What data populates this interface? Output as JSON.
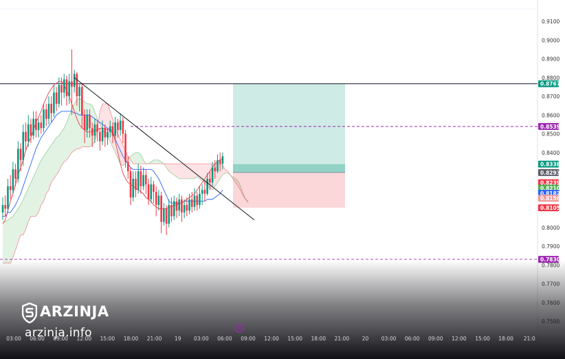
{
  "watermark": {
    "brand": "ARZINJA",
    "url": "arzinja.info"
  },
  "chart_data": {
    "type": "candlestick",
    "y_range": [
      0.7455,
      0.916
    ],
    "y_ticks": [
      "0.9100",
      "0.9000",
      "0.8900",
      "0.8800",
      "0.8700",
      "0.8600",
      "0.8500",
      "0.8400",
      "0.8300",
      "0.8200",
      "0.8100",
      "0.8000",
      "0.7900",
      "0.7800",
      "0.7700",
      "0.7600",
      "0.7500"
    ],
    "x_ticks": [
      "03:00",
      "06:00",
      "09:00",
      "12:00",
      "15:00",
      "18:00",
      "21:00",
      "19",
      "03:00",
      "06:00",
      "09:00",
      "12:00",
      "15:00",
      "18:00",
      "21:00",
      "20",
      "03:00",
      "06:00",
      "09:00",
      "12:00",
      "15:00",
      "18:00",
      "21:0"
    ],
    "price_tags": [
      {
        "label": "0.8767",
        "value": 0.8767,
        "color": "#089981"
      },
      {
        "label": "0.8539",
        "value": 0.8539,
        "color": "#9c27b0"
      },
      {
        "label": "0.8338",
        "value": 0.8338,
        "color": "#089981"
      },
      {
        "label": "0.8293",
        "value": 0.8293,
        "color": "#5d606b"
      },
      {
        "label": "0.8239",
        "value": 0.8239,
        "color": "#f23645"
      },
      {
        "label": "0.8210",
        "value": 0.821,
        "color": "#4caf50"
      },
      {
        "label": "0.8182",
        "value": 0.8182,
        "color": "#2962ff"
      },
      {
        "label": "0.8156",
        "value": 0.8156,
        "color": "#ef9a9a"
      },
      {
        "label": "0.8105",
        "value": 0.8105,
        "color": "#f23645"
      },
      {
        "label": "0.7830",
        "value": 0.783,
        "color": "#9c27b0"
      }
    ],
    "horizontal_lines": [
      {
        "value": 0.8767,
        "style": "solid",
        "color": "#131722"
      },
      {
        "value": 0.8539,
        "style": "dashed",
        "color": "#9c27b0"
      },
      {
        "value": 0.783,
        "style": "dashed",
        "color": "#9c27b0"
      }
    ],
    "position": {
      "entry": 0.8293,
      "target": 0.8767,
      "stop": 0.8105
    },
    "candles": [
      [
        0.808,
        0.812,
        0.804,
        0.816
      ],
      [
        0.812,
        0.81,
        0.806,
        0.817
      ],
      [
        0.81,
        0.822,
        0.808,
        0.826
      ],
      [
        0.822,
        0.82,
        0.815,
        0.828
      ],
      [
        0.82,
        0.831,
        0.818,
        0.835
      ],
      [
        0.831,
        0.826,
        0.822,
        0.834
      ],
      [
        0.826,
        0.842,
        0.824,
        0.846
      ],
      [
        0.842,
        0.836,
        0.83,
        0.845
      ],
      [
        0.836,
        0.851,
        0.833,
        0.855
      ],
      [
        0.851,
        0.846,
        0.841,
        0.856
      ],
      [
        0.846,
        0.855,
        0.843,
        0.86
      ],
      [
        0.855,
        0.849,
        0.845,
        0.858
      ],
      [
        0.849,
        0.858,
        0.847,
        0.862
      ],
      [
        0.858,
        0.852,
        0.848,
        0.862
      ],
      [
        0.852,
        0.856,
        0.848,
        0.858
      ],
      [
        0.856,
        0.853,
        0.85,
        0.86
      ],
      [
        0.853,
        0.863,
        0.851,
        0.866
      ],
      [
        0.863,
        0.858,
        0.854,
        0.866
      ],
      [
        0.858,
        0.866,
        0.855,
        0.87
      ],
      [
        0.866,
        0.861,
        0.856,
        0.87
      ],
      [
        0.861,
        0.872,
        0.859,
        0.876
      ],
      [
        0.872,
        0.866,
        0.862,
        0.875
      ],
      [
        0.866,
        0.876,
        0.864,
        0.88
      ],
      [
        0.876,
        0.872,
        0.865,
        0.88
      ],
      [
        0.872,
        0.879,
        0.869,
        0.882
      ],
      [
        0.879,
        0.87,
        0.865,
        0.881
      ],
      [
        0.87,
        0.878,
        0.866,
        0.882
      ],
      [
        0.878,
        0.875,
        0.86,
        0.895
      ],
      [
        0.875,
        0.882,
        0.872,
        0.884
      ],
      [
        0.882,
        0.87,
        0.865,
        0.883
      ],
      [
        0.87,
        0.875,
        0.862,
        0.877
      ],
      [
        0.875,
        0.86,
        0.853,
        0.877
      ],
      [
        0.86,
        0.852,
        0.845,
        0.863
      ],
      [
        0.852,
        0.86,
        0.848,
        0.863
      ],
      [
        0.86,
        0.853,
        0.848,
        0.863
      ],
      [
        0.853,
        0.849,
        0.843,
        0.856
      ],
      [
        0.849,
        0.855,
        0.845,
        0.858
      ],
      [
        0.855,
        0.851,
        0.846,
        0.857
      ],
      [
        0.851,
        0.846,
        0.841,
        0.853
      ],
      [
        0.846,
        0.853,
        0.844,
        0.857
      ],
      [
        0.853,
        0.848,
        0.843,
        0.855
      ],
      [
        0.848,
        0.851,
        0.844,
        0.853
      ],
      [
        0.851,
        0.854,
        0.848,
        0.857
      ],
      [
        0.854,
        0.849,
        0.845,
        0.856
      ],
      [
        0.849,
        0.856,
        0.847,
        0.859
      ],
      [
        0.856,
        0.852,
        0.848,
        0.858
      ],
      [
        0.852,
        0.857,
        0.849,
        0.861
      ],
      [
        0.857,
        0.85,
        0.845,
        0.859
      ],
      [
        0.85,
        0.835,
        0.832,
        0.852
      ],
      [
        0.835,
        0.83,
        0.826,
        0.838
      ],
      [
        0.83,
        0.816,
        0.812,
        0.832
      ],
      [
        0.816,
        0.826,
        0.814,
        0.83
      ],
      [
        0.826,
        0.82,
        0.816,
        0.83
      ],
      [
        0.82,
        0.83,
        0.818,
        0.834
      ],
      [
        0.83,
        0.822,
        0.818,
        0.833
      ],
      [
        0.822,
        0.828,
        0.82,
        0.832
      ],
      [
        0.828,
        0.823,
        0.818,
        0.831
      ],
      [
        0.823,
        0.815,
        0.812,
        0.826
      ],
      [
        0.815,
        0.823,
        0.813,
        0.827
      ],
      [
        0.823,
        0.819,
        0.813,
        0.825
      ],
      [
        0.819,
        0.812,
        0.806,
        0.822
      ],
      [
        0.812,
        0.817,
        0.809,
        0.82
      ],
      [
        0.817,
        0.803,
        0.797,
        0.819
      ],
      [
        0.803,
        0.81,
        0.801,
        0.813
      ],
      [
        0.81,
        0.802,
        0.796,
        0.812
      ],
      [
        0.802,
        0.812,
        0.8,
        0.815
      ],
      [
        0.812,
        0.806,
        0.803,
        0.816
      ],
      [
        0.806,
        0.814,
        0.804,
        0.817
      ],
      [
        0.814,
        0.809,
        0.805,
        0.816
      ],
      [
        0.809,
        0.815,
        0.806,
        0.818
      ],
      [
        0.815,
        0.808,
        0.803,
        0.817
      ],
      [
        0.808,
        0.812,
        0.805,
        0.815
      ],
      [
        0.812,
        0.809,
        0.806,
        0.816
      ],
      [
        0.809,
        0.815,
        0.807,
        0.818
      ],
      [
        0.815,
        0.811,
        0.808,
        0.819
      ],
      [
        0.811,
        0.817,
        0.809,
        0.821
      ],
      [
        0.817,
        0.812,
        0.809,
        0.819
      ],
      [
        0.812,
        0.818,
        0.81,
        0.822
      ],
      [
        0.818,
        0.82,
        0.812,
        0.823
      ],
      [
        0.82,
        0.818,
        0.814,
        0.825
      ],
      [
        0.818,
        0.826,
        0.817,
        0.829
      ],
      [
        0.826,
        0.824,
        0.82,
        0.83
      ],
      [
        0.824,
        0.832,
        0.822,
        0.835
      ],
      [
        0.832,
        0.83,
        0.826,
        0.836
      ],
      [
        0.83,
        0.836,
        0.829,
        0.839
      ],
      [
        0.836,
        0.834,
        0.83,
        0.84
      ],
      [
        0.834,
        0.838,
        0.831,
        0.84
      ]
    ],
    "ichimoku": {
      "conversion_line": [
        0.802,
        0.804,
        0.809,
        0.814,
        0.818,
        0.823,
        0.828,
        0.832,
        0.836,
        0.841,
        0.845,
        0.848,
        0.852,
        0.856,
        0.859,
        0.862,
        0.866,
        0.869,
        0.872,
        0.874,
        0.876,
        0.877,
        0.878,
        0.878,
        0.876,
        0.873,
        0.87,
        0.866,
        0.862,
        0.858,
        0.855,
        0.853,
        0.852,
        0.851,
        0.851,
        0.851,
        0.852,
        0.852,
        0.853,
        0.853,
        0.853,
        0.852,
        0.852,
        0.852,
        0.846,
        0.84,
        0.834,
        0.829,
        0.826,
        0.824,
        0.823,
        0.822,
        0.821,
        0.82,
        0.819,
        0.818,
        0.816,
        0.815,
        0.814,
        0.812,
        0.811,
        0.81,
        0.81,
        0.81,
        0.81,
        0.811,
        0.811,
        0.812,
        0.812,
        0.813,
        0.813,
        0.814,
        0.815,
        0.816,
        0.817,
        0.818,
        0.82,
        0.822,
        0.824,
        0.826,
        0.828,
        0.83,
        0.832,
        0.834,
        0.835,
        0.836,
        0.837
      ],
      "base_line": [
        0.806,
        0.806,
        0.808,
        0.808,
        0.81,
        0.812,
        0.815,
        0.818,
        0.822,
        0.826,
        0.83,
        0.834,
        0.838,
        0.842,
        0.845,
        0.848,
        0.85,
        0.852,
        0.854,
        0.856,
        0.858,
        0.86,
        0.861,
        0.862,
        0.862,
        0.862,
        0.862,
        0.862,
        0.861,
        0.861,
        0.86,
        0.86,
        0.86,
        0.86,
        0.86,
        0.859,
        0.858,
        0.857,
        0.856,
        0.855,
        0.854,
        0.853,
        0.852,
        0.85,
        0.847,
        0.844,
        0.841,
        0.838,
        0.836,
        0.834,
        0.832,
        0.831,
        0.831,
        0.831,
        0.831,
        0.831,
        0.831,
        0.831,
        0.831,
        0.83,
        0.828,
        0.826,
        0.823,
        0.82,
        0.817,
        0.814,
        0.813,
        0.813,
        0.813,
        0.813,
        0.813,
        0.814,
        0.814,
        0.814,
        0.814,
        0.814,
        0.814,
        0.814,
        0.814,
        0.814,
        0.815,
        0.815,
        0.815,
        0.816,
        0.817,
        0.818,
        0.82
      ],
      "span_a": [
        0.803,
        0.803,
        0.804,
        0.805,
        0.806,
        0.808,
        0.81,
        0.812,
        0.815,
        0.818,
        0.821,
        0.824,
        0.827,
        0.83,
        0.833,
        0.836,
        0.838,
        0.84,
        0.842,
        0.844,
        0.846,
        0.848,
        0.849,
        0.851,
        0.853,
        0.856,
        0.86,
        0.863,
        0.866,
        0.868,
        0.869,
        0.868,
        0.867,
        0.866,
        0.866,
        0.865,
        0.862,
        0.858,
        0.855,
        0.852,
        0.85,
        0.848,
        0.846,
        0.843,
        0.84,
        0.837,
        0.834,
        0.833,
        0.834,
        0.836,
        0.838,
        0.839,
        0.84,
        0.84,
        0.839,
        0.836,
        0.834,
        0.834,
        0.835,
        0.836,
        0.836,
        0.836,
        0.835,
        0.834,
        0.832,
        0.83,
        0.829,
        0.828,
        0.827,
        0.826,
        0.826,
        0.826,
        0.826,
        0.826,
        0.826,
        0.826,
        0.827,
        0.826,
        0.825,
        0.824,
        0.822,
        0.821,
        0.82,
        0.822,
        0.824,
        0.826,
        0.828,
        0.829,
        0.829,
        0.828,
        0.827,
        0.826,
        0.825,
        0.822,
        0.818,
        0.815,
        0.813
      ],
      "span_b": [
        0.781,
        0.781,
        0.781,
        0.781,
        0.784,
        0.788,
        0.792,
        0.796,
        0.796,
        0.799,
        0.803,
        0.806,
        0.806,
        0.806,
        0.808,
        0.812,
        0.814,
        0.818,
        0.82,
        0.824,
        0.826,
        0.828,
        0.83,
        0.833,
        0.835,
        0.836,
        0.838,
        0.84,
        0.841,
        0.842,
        0.842,
        0.843,
        0.843,
        0.843,
        0.843,
        0.844,
        0.846,
        0.852,
        0.862,
        0.866,
        0.866,
        0.866,
        0.862,
        0.858,
        0.853,
        0.85,
        0.847,
        0.844,
        0.841,
        0.838,
        0.836,
        0.834,
        0.834,
        0.834,
        0.834,
        0.834,
        0.834,
        0.834,
        0.834,
        0.834,
        0.834,
        0.834,
        0.834,
        0.834,
        0.834,
        0.834,
        0.834,
        0.834,
        0.834,
        0.834,
        0.834,
        0.834,
        0.834,
        0.834,
        0.834,
        0.834,
        0.834,
        0.834,
        0.834,
        0.834,
        0.834,
        0.834,
        0.834,
        0.834,
        0.834,
        0.834,
        0.833,
        0.831,
        0.83,
        0.828,
        0.826,
        0.824,
        0.822,
        0.82,
        0.817,
        0.815,
        0.814
      ]
    },
    "trendline": {
      "from": [
        0.88
      ],
      "to": [
        0.804
      ]
    }
  }
}
